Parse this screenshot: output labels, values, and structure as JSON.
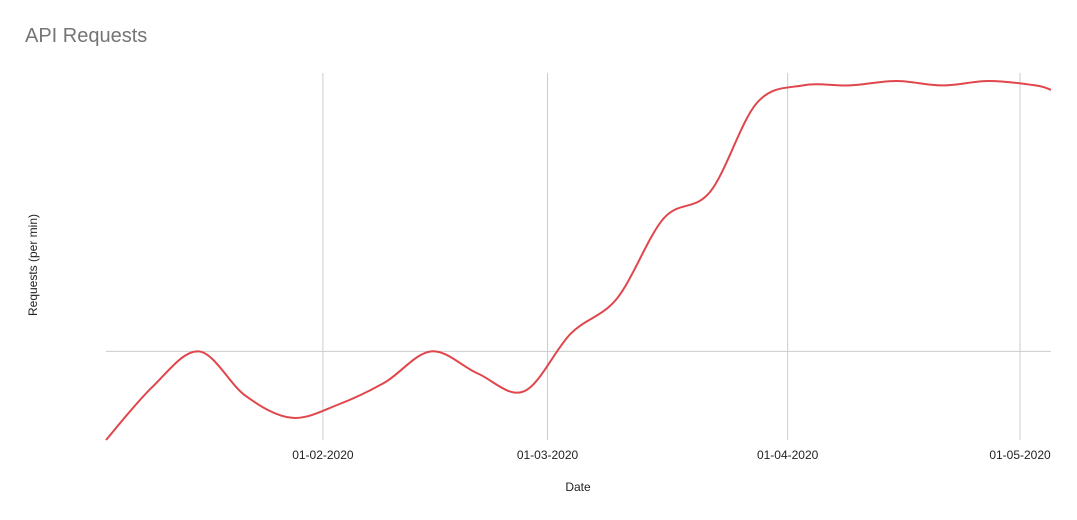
{
  "chart_data": {
    "type": "line",
    "title": "API Requests",
    "xlabel": "Date",
    "ylabel": "Requests (per min)",
    "x_tick_labels": [
      "01-02-2020",
      "01-03-2020",
      "01-04-2020",
      "01-05-2020"
    ],
    "x_ticks": [
      "2020-02-01",
      "2020-03-01",
      "2020-04-01",
      "2020-05-01"
    ],
    "xlim": [
      "2020-01-04",
      "2020-05-05"
    ],
    "y_gridlines": [
      1
    ],
    "ylim": [
      0,
      4.14
    ],
    "grid": true,
    "series": [
      {
        "color": "#e0474c",
        "x": [
          "2020-01-04",
          "2020-01-10",
          "2020-01-16",
          "2020-01-22",
          "2020-01-28",
          "2020-02-03",
          "2020-02-09",
          "2020-02-15",
          "2020-02-21",
          "2020-02-27",
          "2020-03-04",
          "2020-03-10",
          "2020-03-16",
          "2020-03-22",
          "2020-03-28",
          "2020-04-03",
          "2020-04-09",
          "2020-04-15",
          "2020-04-21",
          "2020-04-27",
          "2020-05-03",
          "2020-05-05"
        ],
        "values": [
          0.0,
          0.6,
          1.0,
          0.5,
          0.25,
          0.4,
          0.65,
          1.0,
          0.75,
          0.55,
          1.2,
          1.6,
          2.5,
          2.8,
          3.8,
          4.0,
          4.0,
          4.05,
          4.0,
          4.05,
          4.0,
          3.95
        ]
      }
    ]
  }
}
